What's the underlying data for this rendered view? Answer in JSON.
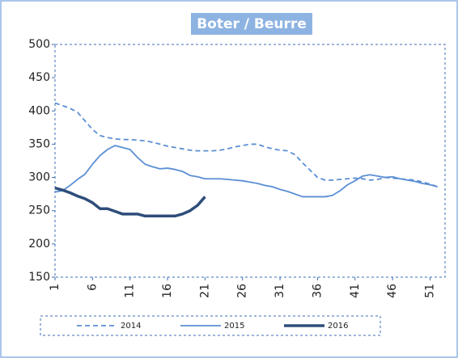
{
  "chart_data": {
    "type": "line",
    "title": "Boter / Beurre",
    "x": [
      1,
      2,
      3,
      4,
      5,
      6,
      7,
      8,
      9,
      10,
      11,
      12,
      13,
      14,
      15,
      16,
      17,
      18,
      19,
      20,
      21,
      22,
      23,
      24,
      25,
      26,
      27,
      28,
      29,
      30,
      31,
      32,
      33,
      34,
      35,
      36,
      37,
      38,
      39,
      40,
      41,
      42,
      43,
      44,
      45,
      46,
      47,
      48,
      49,
      50,
      51,
      52
    ],
    "xlim": [
      1,
      53
    ],
    "xticks": [
      1,
      6,
      11,
      16,
      21,
      26,
      31,
      36,
      41,
      46,
      51
    ],
    "ylim": [
      150,
      500
    ],
    "yticks": [
      150,
      200,
      250,
      300,
      350,
      400,
      450,
      500
    ],
    "series": [
      {
        "name": "2014",
        "color": "#5b8fd4",
        "style": "dashed",
        "values": [
          412,
          408,
          404,
          398,
          385,
          372,
          363,
          360,
          358,
          357,
          357,
          356,
          355,
          353,
          350,
          347,
          345,
          343,
          341,
          340,
          340,
          340,
          341,
          343,
          346,
          348,
          350,
          350,
          346,
          343,
          341,
          340,
          334,
          322,
          311,
          300,
          296,
          296,
          297,
          298,
          299,
          298,
          296,
          297,
          300,
          299,
          298,
          297,
          296,
          293,
          290,
          286
        ]
      },
      {
        "name": "2015",
        "color": "#5b8fd4",
        "style": "solid",
        "values": [
          278,
          280,
          288,
          297,
          305,
          320,
          333,
          342,
          348,
          345,
          342,
          330,
          320,
          316,
          313,
          314,
          312,
          309,
          303,
          301,
          298,
          298,
          298,
          297,
          296,
          295,
          293,
          291,
          288,
          286,
          282,
          279,
          275,
          271,
          271,
          271,
          271,
          273,
          280,
          289,
          295,
          302,
          304,
          302,
          300,
          301,
          298,
          296,
          294,
          291,
          289,
          286
        ]
      },
      {
        "name": "2016",
        "color": "#2e4d7a",
        "style": "bold",
        "values": [
          284,
          281,
          277,
          272,
          268,
          262,
          253,
          253,
          249,
          245,
          245,
          245,
          242,
          242,
          242,
          242,
          242,
          245,
          250,
          258,
          271,
          null,
          null,
          null,
          null,
          null,
          null,
          null,
          null,
          null,
          null,
          null,
          null,
          null,
          null,
          null,
          null,
          null,
          null,
          null,
          null,
          null,
          null,
          null,
          null,
          null,
          null,
          null,
          null,
          null,
          null,
          null
        ]
      }
    ],
    "legend": "bottom"
  }
}
